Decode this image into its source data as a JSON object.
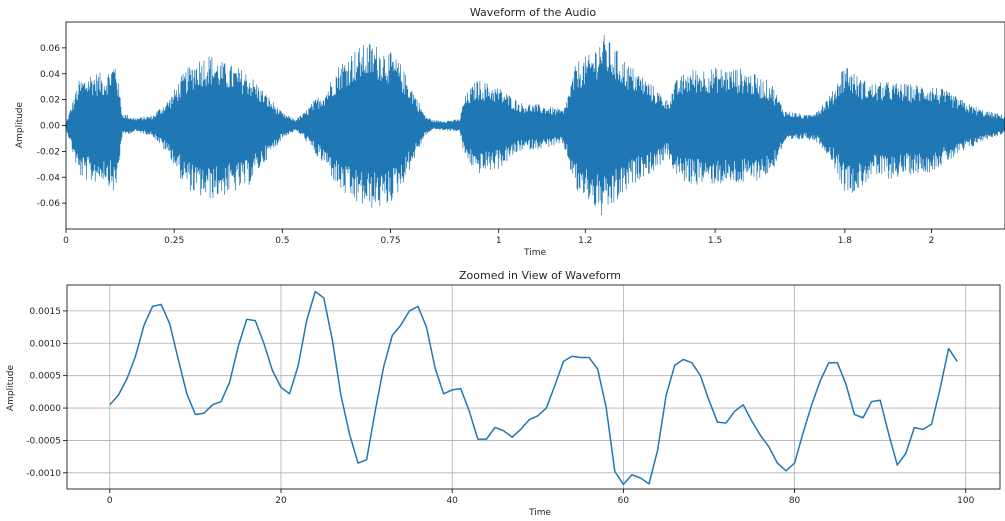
{
  "chart_data": [
    {
      "type": "line",
      "title": "Waveform of the Audio",
      "xlabel": "Time",
      "ylabel": "Amplitude",
      "xlim": [
        0,
        2.17
      ],
      "ylim": [
        -0.08,
        0.08
      ],
      "grid": false,
      "x_ticks": [
        0,
        0.25,
        0.5,
        0.75,
        1,
        1.2,
        1.5,
        1.8,
        2
      ],
      "x_tick_labels": [
        "0",
        "0.25",
        "0.5",
        "0.75",
        "1",
        "1.2",
        "1.5",
        "1.8",
        "2"
      ],
      "y_ticks": [
        0.06,
        0.04,
        0.02,
        0.0,
        -0.02,
        -0.04,
        -0.06
      ],
      "y_tick_labels": [
        "0.06",
        "0.04",
        "0.02",
        "0.00",
        "-0.02",
        "-0.04",
        "-0.06"
      ],
      "color": "#1f77b4",
      "envelope": {
        "t": [
          0.0,
          0.03,
          0.06,
          0.09,
          0.115,
          0.13,
          0.16,
          0.2,
          0.24,
          0.27,
          0.3,
          0.33,
          0.36,
          0.39,
          0.42,
          0.45,
          0.5,
          0.53,
          0.55,
          0.58,
          0.6,
          0.63,
          0.66,
          0.7,
          0.74,
          0.77,
          0.8,
          0.83,
          0.85,
          0.88,
          0.91,
          0.92,
          0.95,
          1.0,
          1.05,
          1.1,
          1.13,
          1.15,
          1.18,
          1.21,
          1.24,
          1.27,
          1.3,
          1.33,
          1.36,
          1.39,
          1.41,
          1.44,
          1.48,
          1.53,
          1.57,
          1.6,
          1.63,
          1.66,
          1.69,
          1.71,
          1.74,
          1.77,
          1.8,
          1.83,
          1.86,
          1.9,
          1.95,
          2.0,
          2.04,
          2.08,
          2.12,
          2.17
        ],
        "pos": [
          0.002,
          0.035,
          0.042,
          0.04,
          0.052,
          0.01,
          0.006,
          0.008,
          0.022,
          0.04,
          0.052,
          0.056,
          0.05,
          0.046,
          0.042,
          0.03,
          0.01,
          0.005,
          0.01,
          0.022,
          0.028,
          0.048,
          0.058,
          0.065,
          0.06,
          0.05,
          0.03,
          0.008,
          0.004,
          0.004,
          0.005,
          0.022,
          0.036,
          0.03,
          0.018,
          0.016,
          0.014,
          0.012,
          0.05,
          0.055,
          0.072,
          0.06,
          0.048,
          0.04,
          0.03,
          0.02,
          0.035,
          0.044,
          0.045,
          0.045,
          0.044,
          0.038,
          0.034,
          0.012,
          0.01,
          0.008,
          0.014,
          0.026,
          0.05,
          0.038,
          0.033,
          0.034,
          0.032,
          0.032,
          0.026,
          0.018,
          0.012,
          0.008
        ],
        "neg": [
          0.002,
          0.04,
          0.045,
          0.042,
          0.055,
          0.008,
          0.005,
          0.008,
          0.025,
          0.045,
          0.055,
          0.058,
          0.055,
          0.052,
          0.048,
          0.033,
          0.01,
          0.004,
          0.01,
          0.025,
          0.032,
          0.05,
          0.06,
          0.065,
          0.064,
          0.052,
          0.03,
          0.008,
          0.003,
          0.004,
          0.005,
          0.024,
          0.038,
          0.034,
          0.02,
          0.018,
          0.016,
          0.016,
          0.053,
          0.06,
          0.073,
          0.062,
          0.05,
          0.04,
          0.036,
          0.024,
          0.04,
          0.046,
          0.046,
          0.046,
          0.046,
          0.042,
          0.038,
          0.014,
          0.012,
          0.01,
          0.014,
          0.028,
          0.052,
          0.052,
          0.04,
          0.042,
          0.038,
          0.036,
          0.028,
          0.02,
          0.012,
          0.006
        ]
      }
    },
    {
      "type": "line",
      "title": "Zoomed in View of Waveform",
      "xlabel": "Time",
      "ylabel": "Amplitude",
      "xlim": [
        -5,
        104
      ],
      "ylim": [
        -0.00125,
        0.0019
      ],
      "grid": true,
      "x_ticks": [
        0,
        20,
        40,
        60,
        80,
        100
      ],
      "x_tick_labels": [
        "0",
        "20",
        "40",
        "60",
        "80",
        "100"
      ],
      "y_ticks": [
        0.0015,
        0.001,
        0.0005,
        0.0,
        -0.0005,
        -0.001
      ],
      "y_tick_labels": [
        "0.0015",
        "0.0010",
        "0.0005",
        "0.0000",
        "-0.0005",
        "-0.0010"
      ],
      "color": "#1f77b4",
      "x": [
        0,
        1,
        2,
        3,
        4,
        5,
        6,
        7,
        8,
        9,
        10,
        11,
        12,
        13,
        14,
        15,
        16,
        17,
        18,
        19,
        20,
        21,
        22,
        23,
        24,
        25,
        26,
        27,
        28,
        29,
        30,
        31,
        32,
        33,
        34,
        35,
        36,
        37,
        38,
        39,
        40,
        41,
        42,
        43,
        44,
        45,
        46,
        47,
        48,
        49,
        50,
        51,
        52,
        53,
        54,
        55,
        56,
        57,
        58,
        59,
        60,
        61,
        62,
        63,
        64,
        65,
        66,
        67,
        68,
        69,
        70,
        71,
        72,
        73,
        74,
        75,
        76,
        77,
        78,
        79,
        80,
        81,
        82,
        83,
        84,
        85,
        86,
        87,
        88,
        89,
        90,
        91,
        92,
        93,
        94,
        95,
        96,
        97,
        98,
        99
      ],
      "y": [
        5e-05,
        0.0002,
        0.00045,
        0.0008,
        0.00128,
        0.00157,
        0.0016,
        0.0013,
        0.00075,
        0.00022,
        -0.0001,
        -8e-05,
        5e-05,
        0.0001,
        0.0004,
        0.00095,
        0.00137,
        0.00135,
        0.001,
        0.00058,
        0.00032,
        0.00022,
        0.00065,
        0.00135,
        0.0018,
        0.0017,
        0.00105,
        0.0002,
        -0.0004,
        -0.00085,
        -0.0008,
        -5e-05,
        0.00064,
        0.00112,
        0.00128,
        0.0015,
        0.00157,
        0.00125,
        0.00062,
        0.00022,
        0.00028,
        0.0003,
        -5e-05,
        -0.00048,
        -0.00048,
        -0.0003,
        -0.00035,
        -0.00045,
        -0.00033,
        -0.00018,
        -0.00012,
        0.0,
        0.00035,
        0.00072,
        0.0008,
        0.00078,
        0.00078,
        0.0006,
        0.0,
        -0.00098,
        -0.00118,
        -0.00103,
        -0.00108,
        -0.00117,
        -0.00065,
        0.0002,
        0.00066,
        0.00075,
        0.0007,
        0.0005,
        0.00012,
        -0.00022,
        -0.00023,
        -5e-05,
        5e-05,
        -0.0002,
        -0.00042,
        -0.0006,
        -0.00085,
        -0.00097,
        -0.00085,
        -0.00038,
        5e-05,
        0.00042,
        0.0007,
        0.0007,
        0.00037,
        -0.0001,
        -0.00015,
        0.0001,
        0.00012,
        -0.0004,
        -0.00088,
        -0.0007,
        -0.0003,
        -0.00033,
        -0.00025,
        0.0003,
        0.00092,
        0.00072
      ]
    }
  ]
}
